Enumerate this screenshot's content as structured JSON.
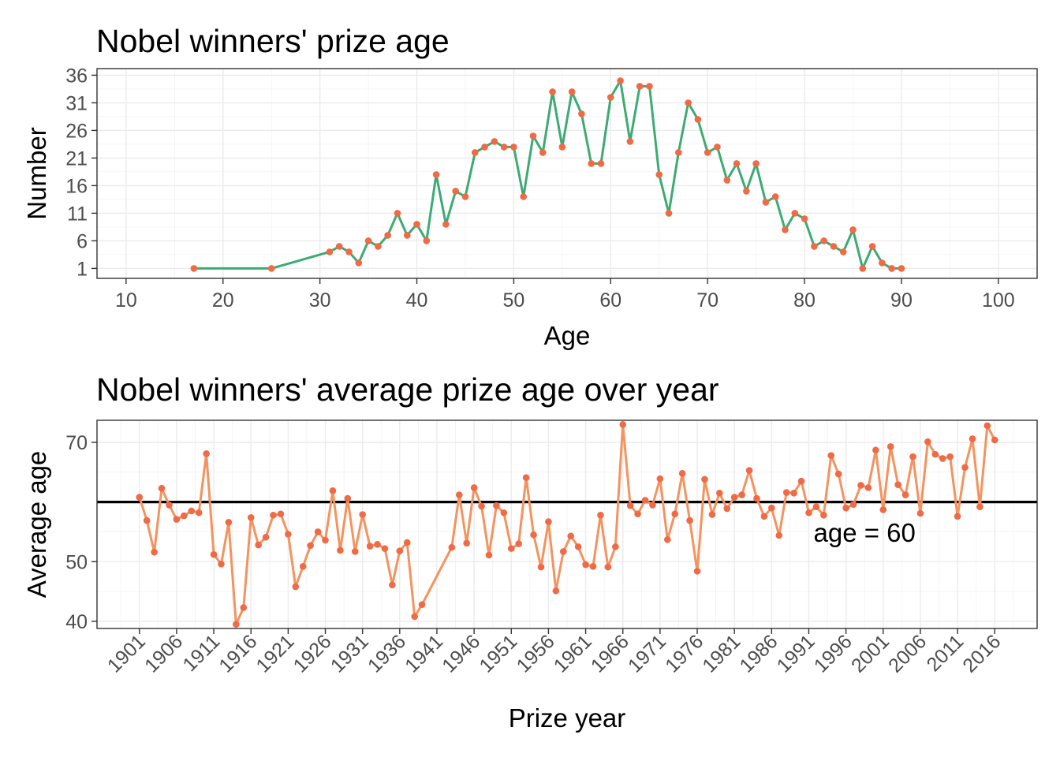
{
  "chart_data": [
    {
      "type": "line",
      "title": "Nobel winners' prize age",
      "xlabel": "Age",
      "ylabel": "Number",
      "xlim": [
        7,
        104
      ],
      "ylim": [
        -0.8,
        37.2
      ],
      "xticks": [
        10,
        20,
        30,
        40,
        50,
        60,
        70,
        80,
        90,
        100
      ],
      "yticks": [
        1,
        6,
        11,
        16,
        21,
        26,
        31,
        36
      ],
      "grid": true,
      "legend": "none",
      "colors": {
        "line": "#3cab73",
        "point": "#ef6a45"
      },
      "x": [
        17,
        25,
        31,
        32,
        33,
        34,
        35,
        36,
        37,
        38,
        39,
        40,
        41,
        42,
        43,
        44,
        45,
        46,
        47,
        48,
        49,
        50,
        51,
        52,
        53,
        54,
        55,
        56,
        57,
        58,
        59,
        60,
        61,
        62,
        63,
        64,
        65,
        66,
        67,
        68,
        69,
        70,
        71,
        72,
        73,
        74,
        75,
        76,
        77,
        78,
        79,
        80,
        81,
        82,
        83,
        84,
        85,
        86,
        87,
        88,
        89,
        90
      ],
      "y": [
        1,
        1,
        4,
        5,
        4,
        2,
        6,
        5,
        7,
        11,
        7,
        9,
        6,
        18,
        9,
        15,
        14,
        22,
        23,
        24,
        23,
        23,
        14,
        25,
        22,
        33,
        23,
        33,
        29,
        20,
        20,
        32,
        35,
        24,
        34,
        34,
        18,
        11,
        22,
        31,
        28,
        22,
        23,
        17,
        20,
        15,
        20,
        13,
        14,
        8,
        11,
        10,
        5,
        6,
        5,
        4,
        8,
        1,
        5,
        2,
        1,
        1
      ]
    },
    {
      "type": "line",
      "title": "Nobel winners' average prize age over year",
      "xlabel": "Prize year",
      "ylabel": "Average age",
      "xlim": [
        1895.3,
        2021.7
      ],
      "ylim": [
        38.8,
        73.7
      ],
      "xticks": [
        1901,
        1906,
        1911,
        1916,
        1921,
        1926,
        1931,
        1936,
        1941,
        1946,
        1951,
        1956,
        1961,
        1966,
        1971,
        1976,
        1981,
        1986,
        1991,
        1996,
        2001,
        2006,
        2011,
        2016
      ],
      "yticks": [
        40,
        50,
        70
      ],
      "grid": true,
      "legend": "none",
      "colors": {
        "line": "#f4935e",
        "point": "#ef6a45",
        "hline": "#000000"
      },
      "hline": 60,
      "annotation": {
        "text": "age = 60",
        "x": 1998.5,
        "y": 54.9
      },
      "x": [
        1901,
        1902,
        1903,
        1904,
        1905,
        1906,
        1907,
        1908,
        1909,
        1910,
        1911,
        1912,
        1913,
        1914,
        1915,
        1916,
        1917,
        1918,
        1919,
        1920,
        1921,
        1922,
        1923,
        1924,
        1925,
        1926,
        1927,
        1928,
        1929,
        1930,
        1931,
        1932,
        1933,
        1934,
        1935,
        1936,
        1937,
        1938,
        1939,
        1943,
        1944,
        1945,
        1946,
        1947,
        1948,
        1949,
        1950,
        1951,
        1952,
        1953,
        1954,
        1955,
        1956,
        1957,
        1958,
        1959,
        1960,
        1961,
        1962,
        1963,
        1964,
        1965,
        1966,
        1967,
        1968,
        1969,
        1970,
        1971,
        1972,
        1973,
        1974,
        1975,
        1976,
        1977,
        1978,
        1979,
        1980,
        1981,
        1982,
        1983,
        1984,
        1985,
        1986,
        1987,
        1988,
        1989,
        1990,
        1991,
        1992,
        1993,
        1994,
        1995,
        1996,
        1997,
        1998,
        1999,
        2000,
        2001,
        2002,
        2003,
        2004,
        2005,
        2006,
        2007,
        2008,
        2009,
        2010,
        2011,
        2012,
        2013,
        2014,
        2015,
        2016
      ],
      "y": [
        60.8,
        56.9,
        51.6,
        62.3,
        59.5,
        57.1,
        57.7,
        58.5,
        58.2,
        68.1,
        51.2,
        49.6,
        56.6,
        39.5,
        42.3,
        57.4,
        52.8,
        54.1,
        57.8,
        58.0,
        54.6,
        45.8,
        49.2,
        52.7,
        55.0,
        53.6,
        61.9,
        51.9,
        60.6,
        51.7,
        57.9,
        52.6,
        52.9,
        52.2,
        46.1,
        51.8,
        53.2,
        40.8,
        42.8,
        52.4,
        61.2,
        53.1,
        62.4,
        59.3,
        51.1,
        59.4,
        58.2,
        52.2,
        53.0,
        64.1,
        54.5,
        49.1,
        56.7,
        45.1,
        51.7,
        54.3,
        52.5,
        49.5,
        49.2,
        57.8,
        49.1,
        52.5,
        73.0,
        59.4,
        58.0,
        60.3,
        59.5,
        63.9,
        53.7,
        58.0,
        64.8,
        56.9,
        48.4,
        63.8,
        57.9,
        61.5,
        58.9,
        60.8,
        61.2,
        65.3,
        60.6,
        57.6,
        59.0,
        54.4,
        61.6,
        61.5,
        63.5,
        58.2,
        59.2,
        57.8,
        67.8,
        64.7,
        59.0,
        59.6,
        62.8,
        62.4,
        68.7,
        58.7,
        69.3,
        62.9,
        61.2,
        67.6,
        58.1,
        70.1,
        68.0,
        67.3,
        67.6,
        57.6,
        65.8,
        70.6,
        59.2,
        72.8,
        70.4
      ]
    }
  ]
}
